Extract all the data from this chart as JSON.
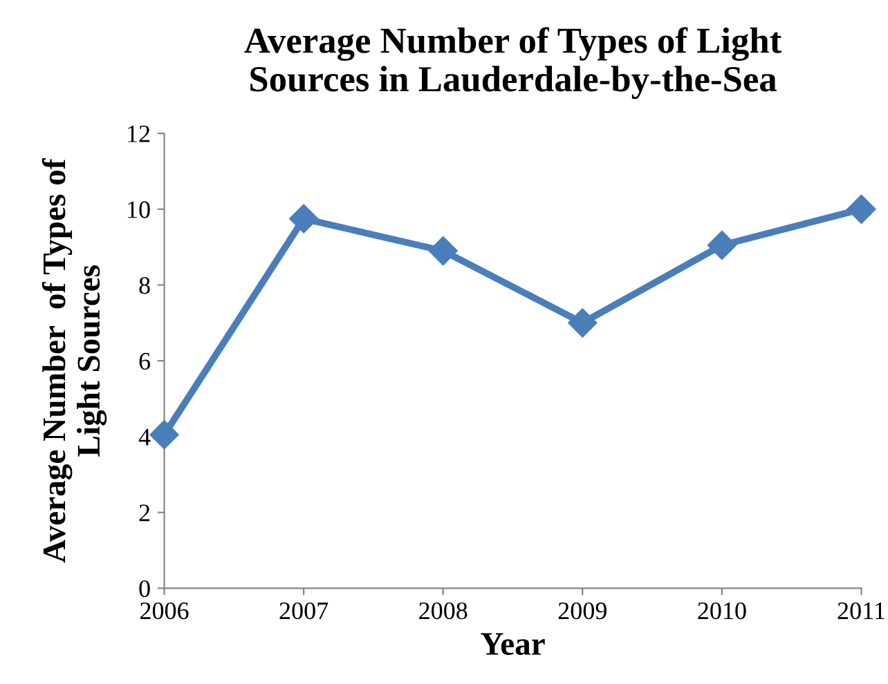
{
  "chart_data": {
    "type": "line",
    "title": "Average Number of Types of Light\nSources in Lauderdale-by-the-Sea",
    "xlabel": "Year",
    "ylabel": "Average Number  of Types of\nLight Sources",
    "x": [
      2006,
      2007,
      2008,
      2009,
      2010,
      2011
    ],
    "series": [
      {
        "color": "#4a7ebb",
        "values": [
          4.05,
          9.75,
          8.9,
          7.0,
          9.05,
          10.0
        ]
      }
    ],
    "xlim": [
      2006,
      2011
    ],
    "xticks": [
      2006,
      2007,
      2008,
      2009,
      2010,
      2011
    ],
    "ylim": [
      0,
      12
    ],
    "yticks": [
      0,
      2,
      4,
      6,
      8,
      10,
      12
    ],
    "grid": false,
    "legend": false,
    "marker": "diamond",
    "line_style": "solid"
  }
}
